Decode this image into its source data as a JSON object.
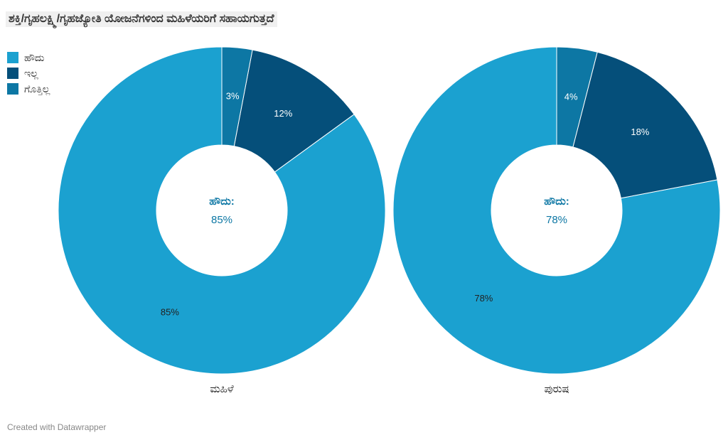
{
  "title": "ಶಕ್ತಿ/ಗೃಹಲಕ್ಷ್ಮಿ/ಗೃಹಜ್ಯೋತಿ ಯೋಜನೆಗಳಿಂದ ಮಹಿಳೆಯರಿಗೆ ಸಹಾಯಗುತ್ತದೆ",
  "footer": "Created with Datawrapper",
  "colors": {
    "yes": "#1ba1d0",
    "no": "#054f7a",
    "dontknow": "#0d77a4",
    "center_label": "#0d77a4"
  },
  "legend": [
    {
      "label": "ಹೌದು",
      "color": "#1ba1d0"
    },
    {
      "label": "ಇಲ್ಲ",
      "color": "#054f7a"
    },
    {
      "label": "ಗೊತ್ತಿಲ್ಲ",
      "color": "#0d77a4"
    }
  ],
  "chart_data": [
    {
      "type": "pie",
      "donut": true,
      "name": "ಮಹಿಳೆ",
      "categories": [
        "ಹೌದು",
        "ಇಲ್ಲ",
        "ಗೊತ್ತಿಲ್ಲ"
      ],
      "values": [
        85,
        12,
        3
      ],
      "data_labels": [
        "85%",
        "12%",
        "3%"
      ],
      "center_title": "ಹೌದು:",
      "center_value": "85%"
    },
    {
      "type": "pie",
      "donut": true,
      "name": "ಪುರುಷ",
      "categories": [
        "ಹೌದು",
        "ಇಲ್ಲ",
        "ಗೊತ್ತಿಲ್ಲ"
      ],
      "values": [
        78,
        18,
        4
      ],
      "data_labels": [
        "78%",
        "18%",
        "4%"
      ],
      "center_title": "ಹೌದು:",
      "center_value": "78%"
    }
  ]
}
